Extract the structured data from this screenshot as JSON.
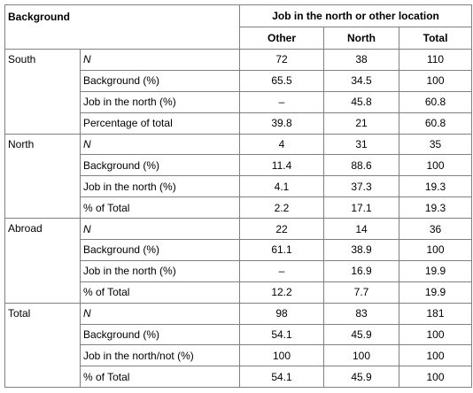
{
  "header": {
    "background": "Background",
    "group_title": "Job in the north or other location",
    "columns": [
      "Other",
      "North",
      "Total"
    ]
  },
  "groups": [
    {
      "label": "South",
      "rows": [
        {
          "label": "N",
          "values": [
            72,
            38,
            110
          ]
        },
        {
          "label": "Background (%)",
          "values": [
            65.5,
            34.5,
            100
          ]
        },
        {
          "label": "Job in the north (%)",
          "values": [
            "–",
            45.8,
            60.8
          ]
        },
        {
          "label": "Percentage of total",
          "values": [
            39.8,
            21,
            60.8
          ]
        }
      ]
    },
    {
      "label": "North",
      "rows": [
        {
          "label": "N",
          "values": [
            4,
            31,
            35
          ]
        },
        {
          "label": "Background (%)",
          "values": [
            11.4,
            88.6,
            100
          ]
        },
        {
          "label": "Job in the north (%)",
          "values": [
            4.1,
            37.3,
            19.3
          ]
        },
        {
          "label": "% of Total",
          "values": [
            2.2,
            17.1,
            19.3
          ]
        }
      ]
    },
    {
      "label": "Abroad",
      "rows": [
        {
          "label": "N",
          "values": [
            22,
            14,
            36
          ]
        },
        {
          "label": "Background (%)",
          "values": [
            61.1,
            38.9,
            100
          ]
        },
        {
          "label": "Job in the north (%)",
          "values": [
            "–",
            16.9,
            19.9
          ]
        },
        {
          "label": "% of Total",
          "values": [
            12.2,
            7.7,
            19.9
          ]
        }
      ]
    },
    {
      "label": "Total",
      "rows": [
        {
          "label": "N",
          "values": [
            98,
            83,
            181
          ]
        },
        {
          "label": "Background (%)",
          "values": [
            54.1,
            45.9,
            100
          ]
        },
        {
          "label": "Job in the north/not (%)",
          "values": [
            100,
            100,
            100
          ]
        },
        {
          "label": "% of Total",
          "values": [
            54.1,
            45.9,
            100
          ]
        }
      ]
    }
  ]
}
